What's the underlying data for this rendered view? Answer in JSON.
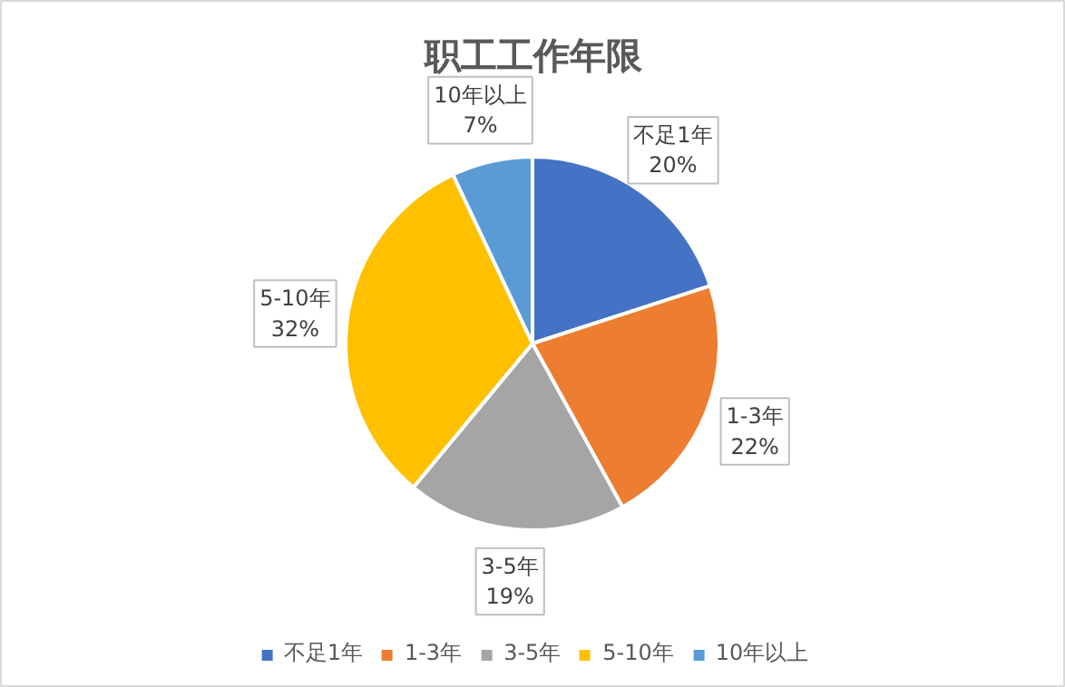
{
  "chart_data": {
    "type": "pie",
    "title": "职工工作年限",
    "categories": [
      "不足1年",
      "1-3年",
      "3-5年",
      "5-10年",
      "10年以上"
    ],
    "values": [
      20,
      22,
      19,
      32,
      7
    ],
    "value_labels": [
      "20%",
      "22%",
      "19%",
      "32%",
      "7%"
    ],
    "colors": [
      "#4472c4",
      "#ed7d31",
      "#a5a5a5",
      "#ffc000",
      "#5b9bd5"
    ],
    "legend": "bottom"
  }
}
